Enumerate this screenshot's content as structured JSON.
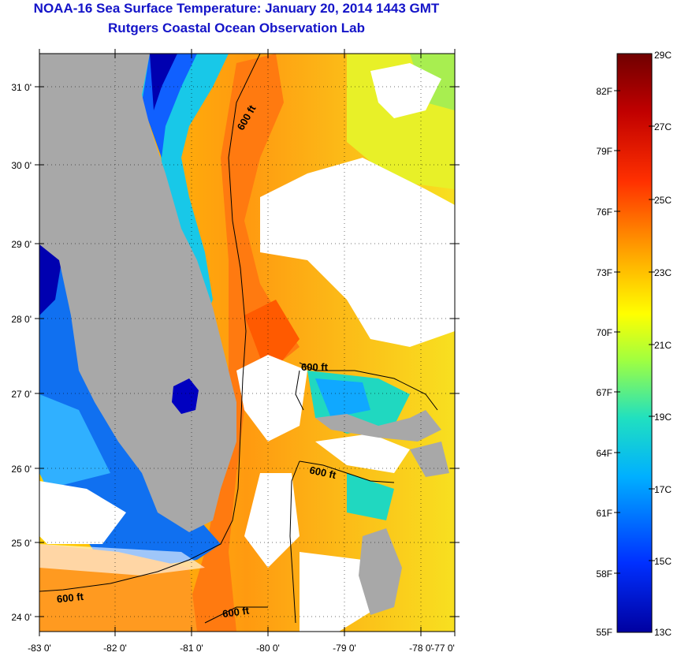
{
  "title": "NOAA-16 Sea Surface Temperature:  January 20, 2014 1443 GMT",
  "subtitle": "Rutgers Coastal Ocean Observation Lab",
  "map": {
    "lat_ticks": [
      "24 0'",
      "25 0'",
      "26 0'",
      "27 0'",
      "28 0'",
      "29 0'",
      "30 0'",
      "31 0'"
    ],
    "lon_ticks": [
      "-83 0'",
      "-82 0'",
      "-81 0'",
      "-80 0'",
      "-79 0'",
      "-78 0'",
      "-77 0'"
    ],
    "contour_label": "600 ft",
    "colors": {
      "land": "#a8a8a8",
      "cloud": "#ffffff",
      "frame": "#000000"
    }
  },
  "colorbar": {
    "celsius": [
      "29C",
      "27C",
      "25C",
      "23C",
      "21C",
      "19C",
      "17C",
      "15C",
      "13C"
    ],
    "fahrenheit": [
      "82F",
      "79F",
      "76F",
      "73F",
      "70F",
      "67F",
      "64F",
      "61F",
      "58F",
      "55F"
    ],
    "gradient_colors": [
      "#0000a0",
      "#0030ff",
      "#00b0ff",
      "#20e0c0",
      "#a0ff40",
      "#ffff00",
      "#ffa000",
      "#ff3000",
      "#c00000",
      "#700000"
    ]
  }
}
